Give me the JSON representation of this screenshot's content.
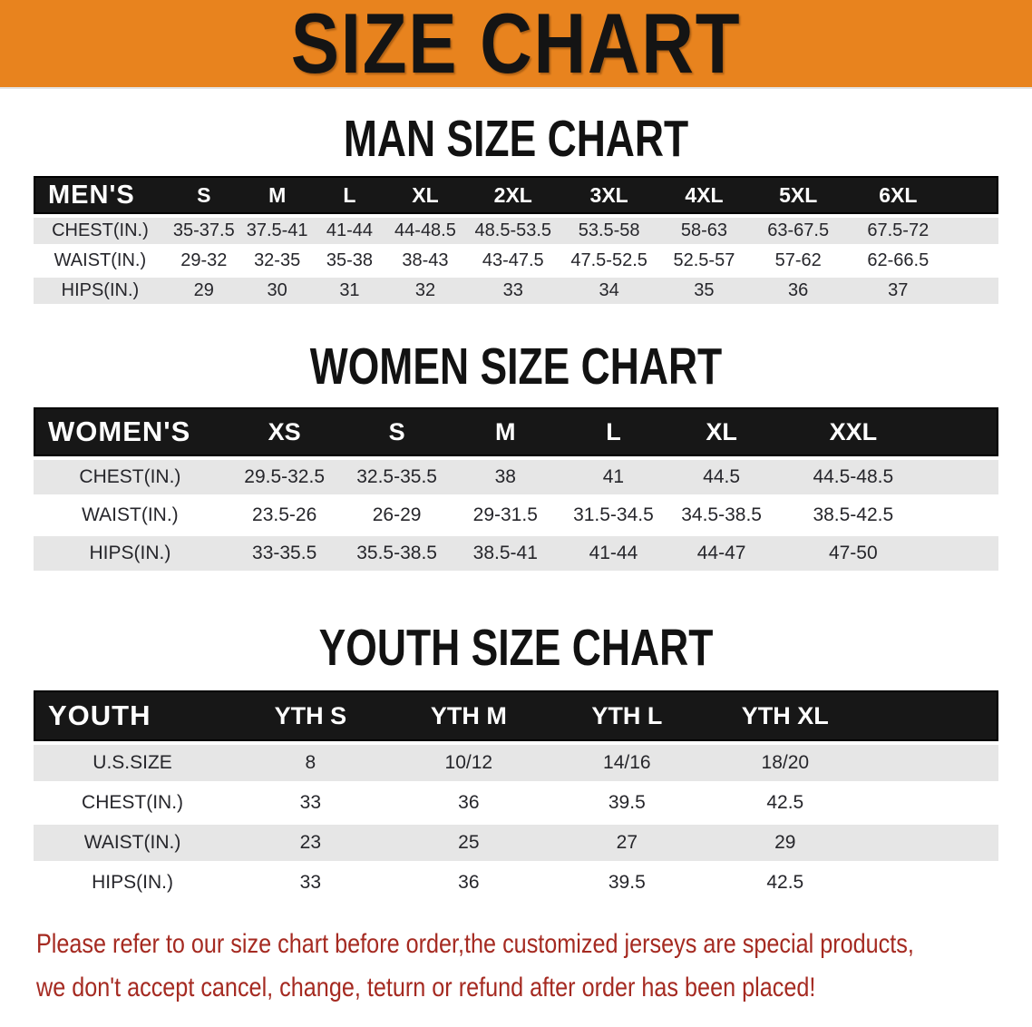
{
  "banner": {
    "title": "SIZE CHART"
  },
  "men": {
    "heading": "MAN SIZE CHART",
    "group_label": "MEN'S",
    "sizes": [
      "S",
      "M",
      "L",
      "XL",
      "2XL",
      "3XL",
      "4XL",
      "5XL",
      "6XL"
    ],
    "rows": [
      {
        "label": "CHEST(IN.)",
        "values": [
          "35-37.5",
          "37.5-41",
          "41-44",
          "44-48.5",
          "48.5-53.5",
          "53.5-58",
          "58-63",
          "63-67.5",
          "67.5-72"
        ]
      },
      {
        "label": "WAIST(IN.)",
        "values": [
          "29-32",
          "32-35",
          "35-38",
          "38-43",
          "43-47.5",
          "47.5-52.5",
          "52.5-57",
          "57-62",
          "62-66.5"
        ]
      },
      {
        "label": "HIPS(IN.)",
        "values": [
          "29",
          "30",
          "31",
          "32",
          "33",
          "34",
          "35",
          "36",
          "37"
        ]
      }
    ]
  },
  "women": {
    "heading": "WOMEN SIZE CHART",
    "group_label": "WOMEN'S",
    "sizes": [
      "XS",
      "S",
      "M",
      "L",
      "XL",
      "XXL"
    ],
    "rows": [
      {
        "label": "CHEST(IN.)",
        "values": [
          "29.5-32.5",
          "32.5-35.5",
          "38",
          "41",
          "44.5",
          "44.5-48.5"
        ]
      },
      {
        "label": "WAIST(IN.)",
        "values": [
          "23.5-26",
          "26-29",
          "29-31.5",
          "31.5-34.5",
          "34.5-38.5",
          "38.5-42.5"
        ]
      },
      {
        "label": "HIPS(IN.)",
        "values": [
          "33-35.5",
          "35.5-38.5",
          "38.5-41",
          "41-44",
          "44-47",
          "47-50"
        ]
      }
    ]
  },
  "youth": {
    "heading": "YOUTH SIZE CHART",
    "group_label": "YOUTH",
    "sizes": [
      "YTH S",
      "YTH M",
      "YTH L",
      "YTH XL"
    ],
    "rows": [
      {
        "label": "U.S.SIZE",
        "values": [
          "8",
          "10/12",
          "14/16",
          "18/20"
        ]
      },
      {
        "label": "CHEST(IN.)",
        "values": [
          "33",
          "36",
          "39.5",
          "42.5"
        ]
      },
      {
        "label": "WAIST(IN.)",
        "values": [
          "23",
          "25",
          "27",
          "29"
        ]
      },
      {
        "label": "HIPS(IN.)",
        "values": [
          "33",
          "36",
          "39.5",
          "42.5"
        ]
      }
    ]
  },
  "footer": {
    "line1": "Please refer to our size chart before order,the customized jerseys are special products,",
    "line2": "we don't accept cancel, change, teturn or refund after order has been placed!"
  },
  "colors": {
    "banner_bg": "#E8831E",
    "header_bar": "#171717",
    "row_shade": "#E6E6E6",
    "body_text": "#26262b",
    "footer_red": "#A52A21"
  }
}
